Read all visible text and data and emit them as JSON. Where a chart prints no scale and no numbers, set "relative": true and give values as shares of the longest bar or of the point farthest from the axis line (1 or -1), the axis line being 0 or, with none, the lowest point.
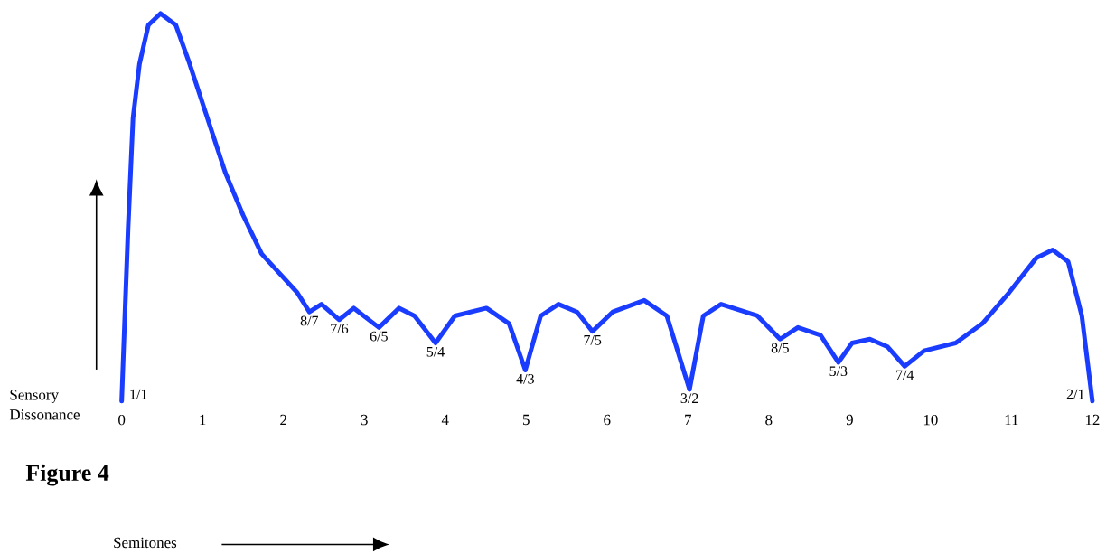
{
  "chart_data": {
    "type": "line",
    "title": "Figure 4",
    "ylabel": "Sensory Dissonance",
    "relative": true,
    "color": "#1a3cff",
    "xlim": [
      0,
      12
    ],
    "xticks": [
      0,
      1,
      2,
      3,
      4,
      5,
      6,
      7,
      8,
      9,
      10,
      11,
      12
    ],
    "x": [
      0,
      0.08,
      0.14,
      0.22,
      0.33,
      0.48,
      0.67,
      0.84,
      1.06,
      1.28,
      1.5,
      1.73,
      1.95,
      2.17,
      2.32,
      2.47,
      2.69,
      2.87,
      3.18,
      3.43,
      3.62,
      3.88,
      4.12,
      4.51,
      4.79,
      4.99,
      5.18,
      5.4,
      5.63,
      5.82,
      6.07,
      6.46,
      6.74,
      7.02,
      7.19,
      7.41,
      7.86,
      8.14,
      8.36,
      8.64,
      8.86,
      9.03,
      9.25,
      9.47,
      9.68,
      9.92,
      10.31,
      10.64,
      10.97,
      11.31,
      11.51,
      11.7,
      11.87,
      12
    ],
    "values": [
      0,
      0.45,
      0.73,
      0.87,
      0.97,
      1,
      0.97,
      0.87,
      0.73,
      0.59,
      0.48,
      0.38,
      0.33,
      0.28,
      0.23,
      0.25,
      0.21,
      0.24,
      0.19,
      0.24,
      0.22,
      0.15,
      0.22,
      0.24,
      0.2,
      0.08,
      0.22,
      0.25,
      0.23,
      0.18,
      0.23,
      0.26,
      0.22,
      0.03,
      0.22,
      0.25,
      0.22,
      0.16,
      0.19,
      0.17,
      0.1,
      0.15,
      0.16,
      0.14,
      0.09,
      0.13,
      0.15,
      0.2,
      0.28,
      0.37,
      0.39,
      0.36,
      0.22,
      0
    ],
    "annotations": [
      {
        "text": "1/1",
        "x": 0,
        "y": 0
      },
      {
        "text": "8/7",
        "x": 2.32,
        "y": 0.23
      },
      {
        "text": "7/6",
        "x": 2.69,
        "y": 0.21
      },
      {
        "text": "6/5",
        "x": 3.18,
        "y": 0.19
      },
      {
        "text": "5/4",
        "x": 3.88,
        "y": 0.15
      },
      {
        "text": "4/3",
        "x": 4.99,
        "y": 0.08
      },
      {
        "text": "7/5",
        "x": 5.82,
        "y": 0.18
      },
      {
        "text": "3/2",
        "x": 7.02,
        "y": 0.03
      },
      {
        "text": "8/5",
        "x": 8.14,
        "y": 0.16
      },
      {
        "text": "5/3",
        "x": 8.86,
        "y": 0.1
      },
      {
        "text": "7/4",
        "x": 9.68,
        "y": 0.09
      },
      {
        "text": "2/1",
        "x": 12,
        "y": 0
      },
      "Semitones"
    ]
  }
}
